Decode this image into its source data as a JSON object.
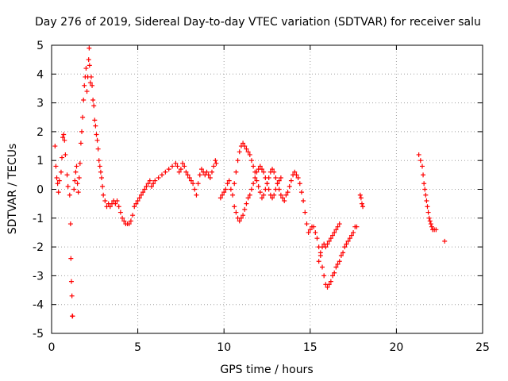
{
  "chart_data": {
    "type": "scatter",
    "title": "Day 276 of 2019, Sidereal Day-to-day VTEC variation (SDTVAR) for receiver salu",
    "xlabel": "GPS time / hours",
    "ylabel": "SDTVAR / TECUs",
    "xlim": [
      0,
      25
    ],
    "ylim": [
      -5,
      5
    ],
    "x_ticks": [
      0,
      5,
      10,
      15,
      20,
      25
    ],
    "y_ticks": [
      -5,
      -4,
      -3,
      -2,
      -1,
      0,
      1,
      2,
      3,
      4,
      5
    ],
    "grid": true,
    "marker": "+",
    "color": "#ff0000",
    "series": [
      {
        "name": "SDTVAR",
        "points": [
          [
            0.2,
            1.5
          ],
          [
            0.25,
            0.8
          ],
          [
            0.3,
            0.4
          ],
          [
            0.35,
            0.2
          ],
          [
            0.4,
            -0.1
          ],
          [
            0.45,
            0.3
          ],
          [
            0.55,
            0.6
          ],
          [
            0.6,
            1.1
          ],
          [
            0.65,
            1.8
          ],
          [
            0.7,
            1.9
          ],
          [
            0.75,
            1.7
          ],
          [
            0.8,
            1.2
          ],
          [
            0.9,
            0.5
          ],
          [
            0.95,
            0.1
          ],
          [
            1.05,
            -0.2
          ],
          [
            1.1,
            -1.2
          ],
          [
            1.12,
            -2.4
          ],
          [
            1.15,
            -3.2
          ],
          [
            1.18,
            -3.7
          ],
          [
            1.2,
            -4.4
          ],
          [
            1.22,
            -4.4
          ],
          [
            1.3,
            0.0
          ],
          [
            1.35,
            0.3
          ],
          [
            1.4,
            0.6
          ],
          [
            1.45,
            0.8
          ],
          [
            1.5,
            0.2
          ],
          [
            1.55,
            -0.1
          ],
          [
            1.6,
            0.4
          ],
          [
            1.65,
            0.9
          ],
          [
            1.7,
            1.6
          ],
          [
            1.75,
            2.0
          ],
          [
            1.8,
            2.5
          ],
          [
            1.85,
            3.1
          ],
          [
            1.9,
            3.6
          ],
          [
            1.95,
            3.9
          ],
          [
            2.0,
            4.2
          ],
          [
            2.05,
            3.4
          ],
          [
            2.1,
            3.9
          ],
          [
            2.15,
            4.5
          ],
          [
            2.18,
            4.9
          ],
          [
            2.2,
            4.3
          ],
          [
            2.25,
            3.7
          ],
          [
            2.3,
            3.9
          ],
          [
            2.35,
            3.6
          ],
          [
            2.4,
            3.1
          ],
          [
            2.45,
            2.9
          ],
          [
            2.5,
            2.4
          ],
          [
            2.55,
            2.2
          ],
          [
            2.6,
            1.9
          ],
          [
            2.65,
            1.7
          ],
          [
            2.7,
            1.4
          ],
          [
            2.75,
            1.0
          ],
          [
            2.8,
            0.8
          ],
          [
            2.85,
            0.6
          ],
          [
            2.9,
            0.4
          ],
          [
            2.95,
            0.1
          ],
          [
            3.0,
            -0.2
          ],
          [
            3.1,
            -0.4
          ],
          [
            3.2,
            -0.6
          ],
          [
            3.3,
            -0.5
          ],
          [
            3.4,
            -0.6
          ],
          [
            3.5,
            -0.5
          ],
          [
            3.6,
            -0.4
          ],
          [
            3.7,
            -0.5
          ],
          [
            3.8,
            -0.4
          ],
          [
            3.9,
            -0.6
          ],
          [
            4.0,
            -0.8
          ],
          [
            4.1,
            -1.0
          ],
          [
            4.2,
            -1.1
          ],
          [
            4.3,
            -1.2
          ],
          [
            4.4,
            -1.2
          ],
          [
            4.5,
            -1.2
          ],
          [
            4.6,
            -1.1
          ],
          [
            4.7,
            -0.9
          ],
          [
            4.8,
            -0.6
          ],
          [
            4.9,
            -0.5
          ],
          [
            5.0,
            -0.4
          ],
          [
            5.1,
            -0.3
          ],
          [
            5.2,
            -0.2
          ],
          [
            5.3,
            -0.1
          ],
          [
            5.4,
            0.0
          ],
          [
            5.5,
            0.1
          ],
          [
            5.6,
            0.2
          ],
          [
            5.7,
            0.3
          ],
          [
            5.8,
            0.1
          ],
          [
            5.9,
            0.2
          ],
          [
            6.0,
            0.3
          ],
          [
            6.2,
            0.4
          ],
          [
            6.4,
            0.5
          ],
          [
            6.6,
            0.6
          ],
          [
            6.8,
            0.7
          ],
          [
            7.0,
            0.8
          ],
          [
            7.2,
            0.9
          ],
          [
            7.3,
            0.8
          ],
          [
            7.4,
            0.6
          ],
          [
            7.5,
            0.7
          ],
          [
            7.6,
            0.9
          ],
          [
            7.7,
            0.8
          ],
          [
            7.8,
            0.6
          ],
          [
            7.9,
            0.5
          ],
          [
            8.0,
            0.4
          ],
          [
            8.1,
            0.3
          ],
          [
            8.2,
            0.2
          ],
          [
            8.3,
            0.0
          ],
          [
            8.4,
            -0.2
          ],
          [
            8.5,
            0.2
          ],
          [
            8.6,
            0.5
          ],
          [
            8.7,
            0.7
          ],
          [
            8.8,
            0.6
          ],
          [
            8.9,
            0.5
          ],
          [
            9.0,
            0.6
          ],
          [
            9.1,
            0.5
          ],
          [
            9.2,
            0.4
          ],
          [
            9.3,
            0.6
          ],
          [
            9.4,
            0.8
          ],
          [
            9.5,
            1.0
          ],
          [
            9.55,
            0.9
          ],
          [
            9.8,
            -0.3
          ],
          [
            9.9,
            -0.2
          ],
          [
            10.0,
            -0.1
          ],
          [
            10.1,
            0.0
          ],
          [
            10.2,
            0.2
          ],
          [
            10.3,
            0.3
          ],
          [
            10.4,
            0.0
          ],
          [
            10.5,
            -0.2
          ],
          [
            10.6,
            0.2
          ],
          [
            10.7,
            0.6
          ],
          [
            10.8,
            1.0
          ],
          [
            10.9,
            1.3
          ],
          [
            11.0,
            1.5
          ],
          [
            11.1,
            1.6
          ],
          [
            11.2,
            1.5
          ],
          [
            11.3,
            1.4
          ],
          [
            11.4,
            1.3
          ],
          [
            11.5,
            1.2
          ],
          [
            11.6,
            1.0
          ],
          [
            11.7,
            0.8
          ],
          [
            11.8,
            0.6
          ],
          [
            11.9,
            0.3
          ],
          [
            12.0,
            0.1
          ],
          [
            12.1,
            -0.1
          ],
          [
            12.2,
            -0.3
          ],
          [
            12.3,
            -0.2
          ],
          [
            12.4,
            0.0
          ],
          [
            12.5,
            0.2
          ],
          [
            12.6,
            0.4
          ],
          [
            12.7,
            0.6
          ],
          [
            12.8,
            0.7
          ],
          [
            12.9,
            0.6
          ],
          [
            13.0,
            0.4
          ],
          [
            13.1,
            0.2
          ],
          [
            13.2,
            0.0
          ],
          [
            13.3,
            -0.2
          ],
          [
            13.4,
            -0.3
          ],
          [
            13.5,
            -0.4
          ],
          [
            13.6,
            -0.2
          ],
          [
            13.7,
            -0.1
          ],
          [
            13.8,
            0.1
          ],
          [
            13.9,
            0.3
          ],
          [
            14.0,
            0.5
          ],
          [
            14.1,
            0.6
          ],
          [
            14.2,
            0.5
          ],
          [
            14.3,
            0.4
          ],
          [
            14.4,
            0.2
          ],
          [
            10.6,
            -0.6
          ],
          [
            10.7,
            -0.8
          ],
          [
            10.8,
            -1.0
          ],
          [
            10.9,
            -1.1
          ],
          [
            11.0,
            -1.0
          ],
          [
            11.1,
            -0.9
          ],
          [
            11.2,
            -0.7
          ],
          [
            11.3,
            -0.5
          ],
          [
            11.4,
            -0.3
          ],
          [
            11.5,
            -0.2
          ],
          [
            11.6,
            0.0
          ],
          [
            11.7,
            0.2
          ],
          [
            11.8,
            0.4
          ],
          [
            11.9,
            0.6
          ],
          [
            12.0,
            0.7
          ],
          [
            12.1,
            0.8
          ],
          [
            12.2,
            0.7
          ],
          [
            12.3,
            0.6
          ],
          [
            12.4,
            0.4
          ],
          [
            12.5,
            0.2
          ],
          [
            12.6,
            0.0
          ],
          [
            12.7,
            -0.2
          ],
          [
            12.8,
            -0.3
          ],
          [
            12.9,
            -0.2
          ],
          [
            13.0,
            0.0
          ],
          [
            13.1,
            0.2
          ],
          [
            13.2,
            0.3
          ],
          [
            13.3,
            0.4
          ],
          [
            14.5,
            -0.1
          ],
          [
            14.6,
            -0.4
          ],
          [
            14.7,
            -0.8
          ],
          [
            14.8,
            -1.2
          ],
          [
            14.9,
            -1.5
          ],
          [
            15.0,
            -1.4
          ],
          [
            15.1,
            -1.3
          ],
          [
            15.2,
            -1.3
          ],
          [
            15.3,
            -1.5
          ],
          [
            15.4,
            -1.7
          ],
          [
            15.5,
            -2.0
          ],
          [
            15.6,
            -2.3
          ],
          [
            15.7,
            -2.7
          ],
          [
            15.8,
            -3.0
          ],
          [
            15.9,
            -3.3
          ],
          [
            16.0,
            -3.4
          ],
          [
            16.1,
            -3.3
          ],
          [
            16.2,
            -3.2
          ],
          [
            16.3,
            -3.0
          ],
          [
            16.4,
            -2.9
          ],
          [
            16.5,
            -2.7
          ],
          [
            16.6,
            -2.6
          ],
          [
            16.7,
            -2.5
          ],
          [
            16.8,
            -2.3
          ],
          [
            16.9,
            -2.2
          ],
          [
            17.0,
            -2.0
          ],
          [
            17.1,
            -1.9
          ],
          [
            17.2,
            -1.8
          ],
          [
            17.3,
            -1.7
          ],
          [
            17.4,
            -1.6
          ],
          [
            17.5,
            -1.5
          ],
          [
            17.6,
            -1.3
          ],
          [
            17.7,
            -1.3
          ],
          [
            15.5,
            -2.5
          ],
          [
            15.6,
            -2.2
          ],
          [
            15.7,
            -2.0
          ],
          [
            15.8,
            -1.9
          ],
          [
            15.9,
            -2.0
          ],
          [
            16.0,
            -1.9
          ],
          [
            16.1,
            -1.8
          ],
          [
            16.2,
            -1.7
          ],
          [
            16.3,
            -1.6
          ],
          [
            16.4,
            -1.5
          ],
          [
            16.5,
            -1.4
          ],
          [
            16.6,
            -1.3
          ],
          [
            16.7,
            -1.2
          ],
          [
            17.9,
            -0.2
          ],
          [
            17.95,
            -0.3
          ],
          [
            18.0,
            -0.5
          ],
          [
            18.05,
            -0.6
          ],
          [
            21.3,
            1.2
          ],
          [
            21.4,
            1.0
          ],
          [
            21.5,
            0.8
          ],
          [
            21.55,
            0.5
          ],
          [
            21.6,
            0.2
          ],
          [
            21.65,
            0.0
          ],
          [
            21.7,
            -0.2
          ],
          [
            21.75,
            -0.4
          ],
          [
            21.8,
            -0.6
          ],
          [
            21.85,
            -0.8
          ],
          [
            21.9,
            -1.0
          ],
          [
            21.95,
            -1.1
          ],
          [
            22.0,
            -1.2
          ],
          [
            22.05,
            -1.3
          ],
          [
            22.1,
            -1.4
          ],
          [
            22.2,
            -1.4
          ],
          [
            22.3,
            -1.4
          ],
          [
            22.8,
            -1.8
          ]
        ]
      }
    ]
  }
}
